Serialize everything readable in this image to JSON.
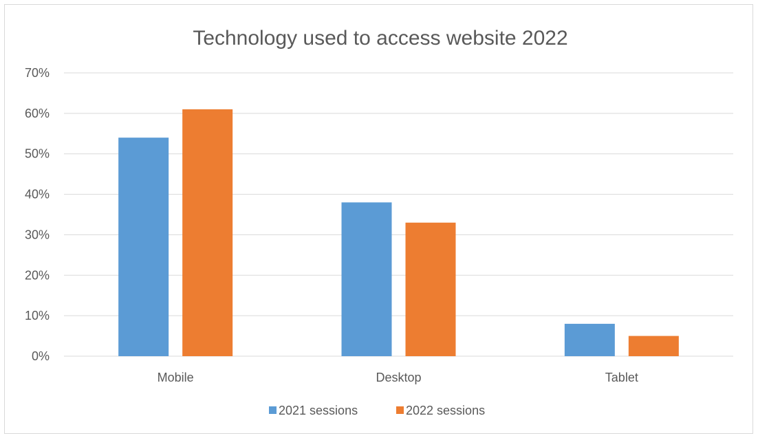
{
  "chart_data": {
    "type": "bar",
    "title": "Technology used to access website 2022",
    "categories": [
      "Mobile",
      "Desktop",
      "Tablet"
    ],
    "series": [
      {
        "name": "2021 sessions",
        "values": [
          54,
          38,
          8
        ],
        "color": "#5b9bd5"
      },
      {
        "name": "2022 sessions",
        "values": [
          61,
          33,
          5
        ],
        "color": "#ed7d31"
      }
    ],
    "xlabel": "",
    "ylabel": "",
    "ylim": [
      0,
      70
    ],
    "yticks": [
      0,
      10,
      20,
      30,
      40,
      50,
      60,
      70
    ],
    "ytick_labels": [
      "0%",
      "10%",
      "20%",
      "30%",
      "40%",
      "50%",
      "60%",
      "70%"
    ],
    "grid": true,
    "legend_position": "bottom",
    "gridline_color": "#d9d9d9"
  }
}
